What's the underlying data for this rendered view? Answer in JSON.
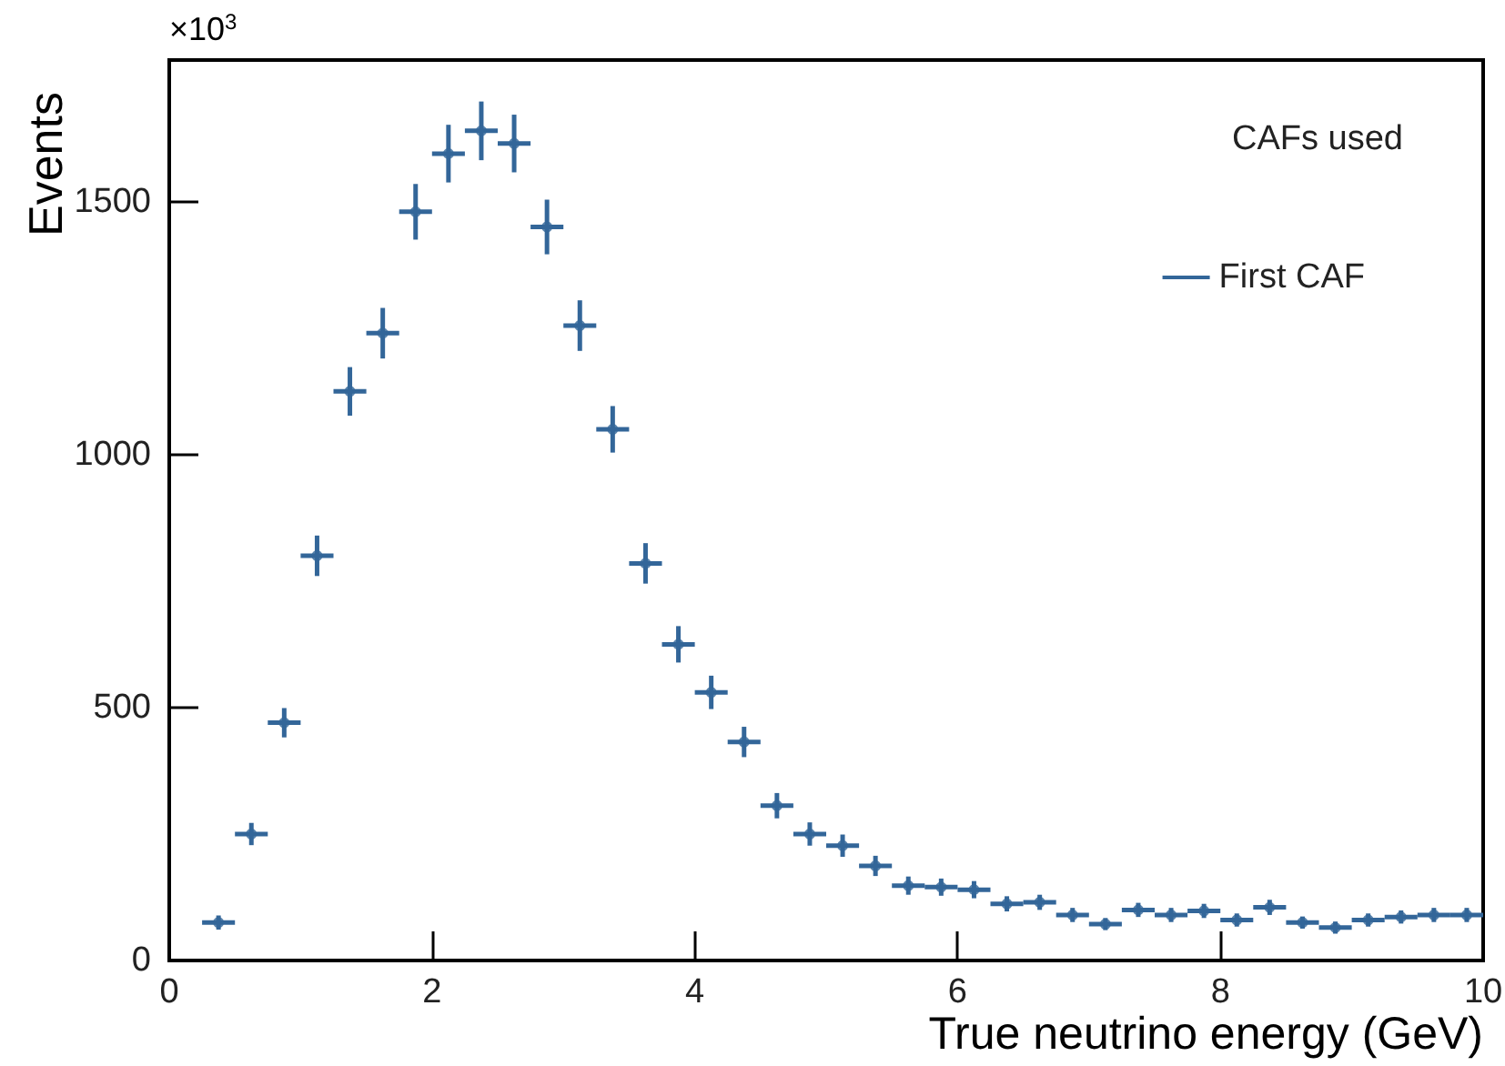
{
  "chart_data": {
    "type": "scatter",
    "xlabel": "True neutrino energy (GeV)",
    "ylabel": "Events",
    "legend_title": "CAFs used",
    "annotations": [
      "×10$^{3}$"
    ],
    "x": [
      0.375,
      0.625,
      0.875,
      1.125,
      1.375,
      1.625,
      1.875,
      2.125,
      2.375,
      2.625,
      2.875,
      3.125,
      3.375,
      3.625,
      3.875,
      4.125,
      4.375,
      4.625,
      4.875,
      5.125,
      5.375,
      5.625,
      5.875,
      6.125,
      6.375,
      6.625,
      6.875,
      7.125,
      7.375,
      7.625,
      7.875,
      8.125,
      8.375,
      8.625,
      8.875,
      9.125,
      9.375,
      9.625,
      9.875
    ],
    "series": [
      {
        "name": "First CAF",
        "color": "#336699",
        "values": [
          75,
          250,
          470,
          800,
          1125,
          1240,
          1480,
          1595,
          1640,
          1615,
          1450,
          1255,
          1050,
          785,
          625,
          530,
          432,
          306,
          250,
          227,
          187,
          148,
          145,
          140,
          112,
          115,
          90,
          72,
          100,
          90,
          98,
          80,
          105,
          75,
          65,
          80,
          86,
          90,
          90
        ],
        "errors": [
          14,
          22,
          29,
          40,
          48,
          50,
          55,
          57,
          58,
          57,
          54,
          50,
          46,
          40,
          36,
          33,
          30,
          25,
          23,
          22,
          20,
          18,
          17,
          17,
          15,
          15,
          14,
          12,
          14,
          14,
          14,
          13,
          15,
          12,
          12,
          13,
          13,
          14,
          14
        ],
        "xerrors": [
          0.125,
          0.125,
          0.125,
          0.125,
          0.125,
          0.125,
          0.125,
          0.125,
          0.125,
          0.125,
          0.125,
          0.125,
          0.125,
          0.125,
          0.125,
          0.125,
          0.125,
          0.125,
          0.125,
          0.125,
          0.125,
          0.125,
          0.125,
          0.125,
          0.125,
          0.125,
          0.125,
          0.125,
          0.125,
          0.125,
          0.125,
          0.125,
          0.125,
          0.125,
          0.125,
          0.125,
          0.125,
          0.125,
          0.125
        ]
      }
    ],
    "xlim": [
      0,
      10
    ],
    "xticks": [
      0,
      2,
      4,
      6,
      8,
      10
    ],
    "ylim": [
      0,
      1780
    ],
    "yticks": [
      0,
      500,
      1000,
      1500
    ],
    "legend": "top right"
  }
}
